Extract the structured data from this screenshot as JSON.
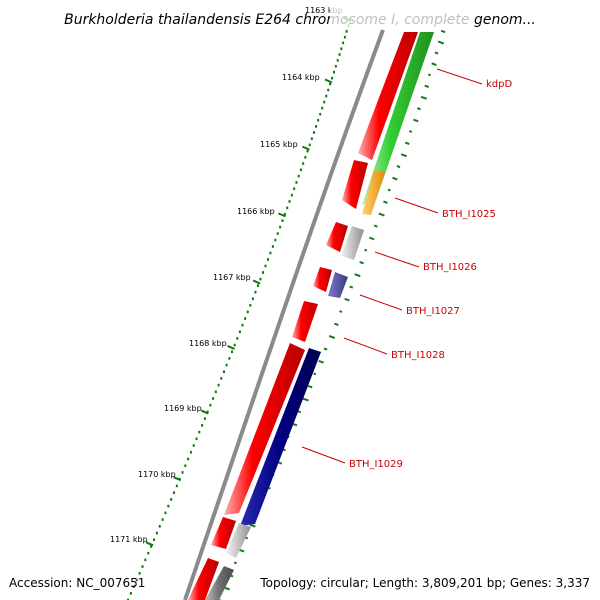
{
  "title": "Burkholderia thailandensis E264 chromosome I, complete genom...",
  "ticks": [
    "1163 kbp",
    "1164 kbp",
    "1165 kbp",
    "1166 kbp",
    "1167 kbp",
    "1168 kbp",
    "1169 kbp",
    "1170 kbp",
    "1171 kbp"
  ],
  "genes": [
    "kdpD",
    "BTH_I1025",
    "BTH_I1026",
    "BTH_I1027",
    "BTH_I1028",
    "BTH_I1029"
  ],
  "colors": {
    "label": "#cc0000",
    "forward_gene": "#ff0000",
    "reverse_gene": "#ee2222",
    "kdpD_green": "#3bcf3b",
    "orange": "#ff9900",
    "gray_gene": "#c0c0c0",
    "purple": "#4c4a9e",
    "navy": "#000080",
    "gc_skew": "#1a7a1a",
    "backbone": "#8a8a8a"
  },
  "footer": {
    "accession": "Accession: NC_007651",
    "topology": "Topology: circular; Length: 3,809,201 bp; Genes: 3,337"
  }
}
